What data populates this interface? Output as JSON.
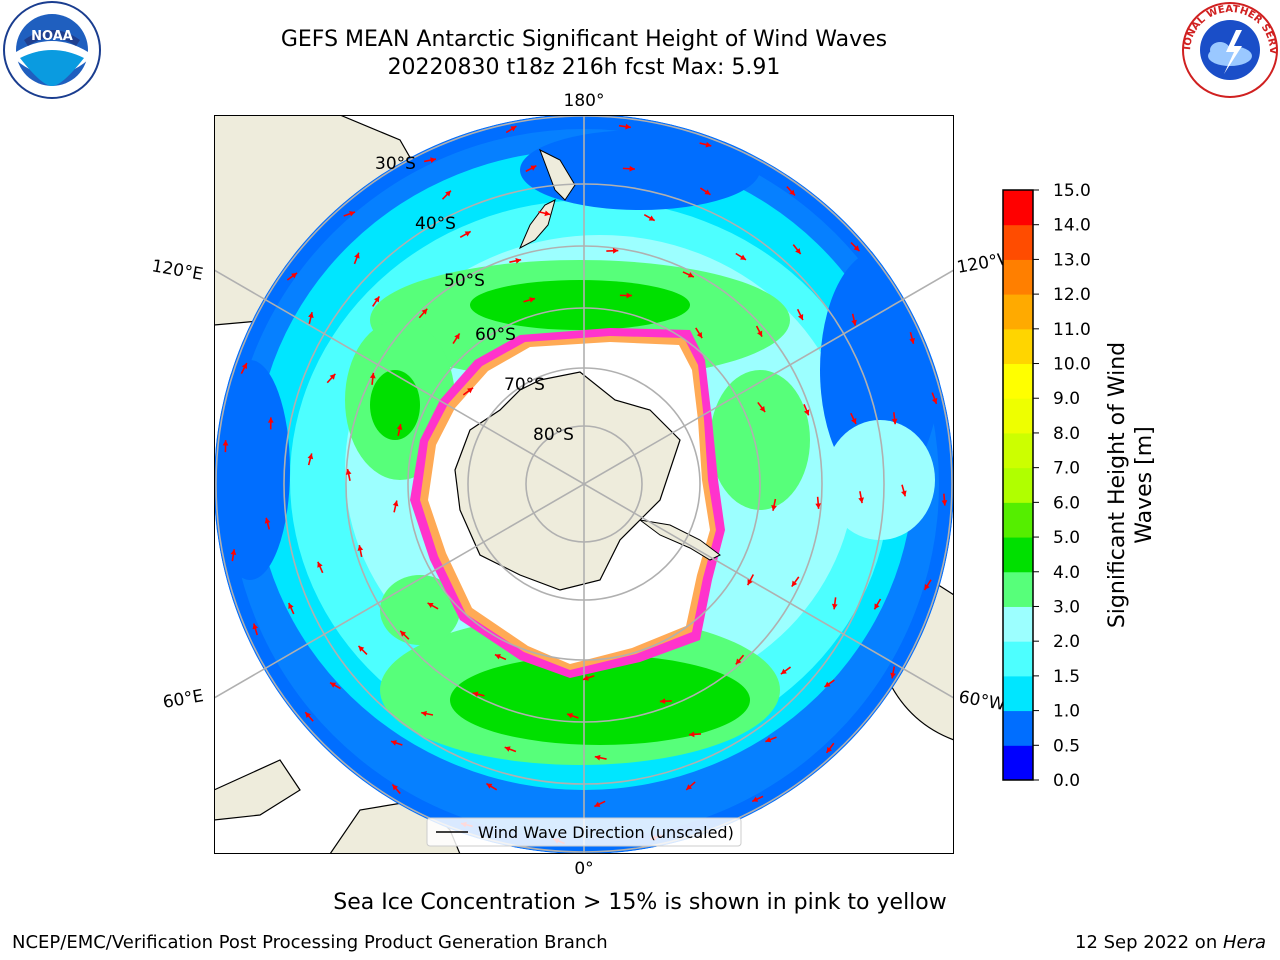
{
  "title": {
    "line1": "GEFS MEAN Antarctic Significant Height of Wind Waves",
    "line2": "20220830 t18z 216h fcst   Max: 5.91"
  },
  "map": {
    "projection": "south-polar-stereographic",
    "lon_labels": {
      "top": "180°",
      "bottom": "0°",
      "upper_left": "120°E",
      "upper_right": "120°W",
      "lower_left": "60°E",
      "lower_right": "60°W"
    },
    "lat_labels": [
      "30°S",
      "40°S",
      "50°S",
      "60°S",
      "70°S",
      "80°S"
    ],
    "legend_label": "Wind Wave Direction (unscaled)",
    "arrow_color": "#ff0000",
    "sea_ice_colors": [
      "#ff33cc",
      "#ffaa55",
      "#ffee66"
    ],
    "land_color": "#eeecdc",
    "ice_cap_color": "#ffffff"
  },
  "colorbar": {
    "label": "Significant Height of Wind Waves [m]",
    "ticks": [
      "0.0",
      "0.5",
      "1.0",
      "1.5",
      "2.0",
      "3.0",
      "4.0",
      "5.0",
      "6.0",
      "7.0",
      "8.0",
      "9.0",
      "10.0",
      "11.0",
      "12.0",
      "13.0",
      "14.0",
      "15.0"
    ],
    "colors": [
      "#0000ff",
      "#006eff",
      "#00e6ff",
      "#4dffff",
      "#9cffff",
      "#57ff7a",
      "#00e000",
      "#55ee00",
      "#b0ff00",
      "#ccff00",
      "#eeff00",
      "#ffff00",
      "#ffd500",
      "#ffaa00",
      "#ff7f00",
      "#ff4c00",
      "#ff0000"
    ]
  },
  "notes": {
    "sea_ice": "Sea Ice Concentration > 15% is shown in pink to yellow"
  },
  "footer": {
    "left": "NCEP/EMC/Verification Post Processing Product Generation Branch",
    "right_date": "12 Sep 2022 on ",
    "right_machine": "Hera"
  },
  "logos": {
    "left": "NOAA",
    "right": "NATIONAL WEATHER SERVICE"
  }
}
